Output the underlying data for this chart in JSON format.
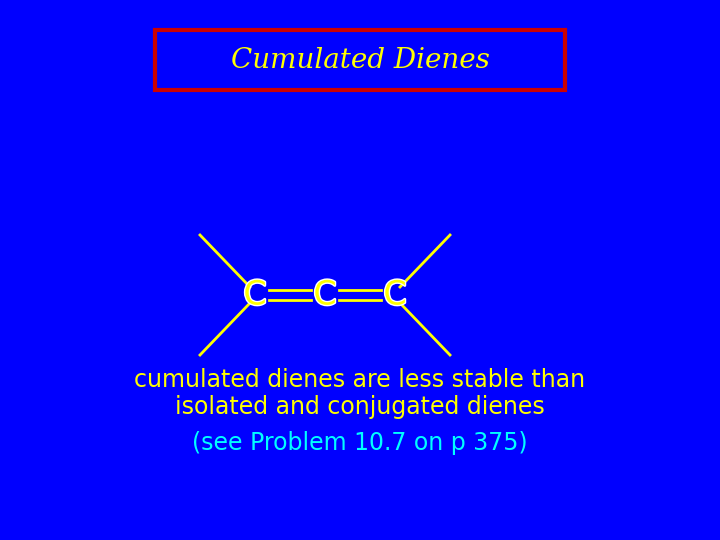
{
  "background_color": "#0000FF",
  "title_text": "Cumulated Dienes",
  "title_color": "#FFFF00",
  "title_box_color": "#CC0000",
  "title_fontsize": 20,
  "molecule_C_color": "#FFFF00",
  "molecule_bond_color": "#FFFF00",
  "molecule_fontsize": 24,
  "text1_line1": "cumulated dienes are less stable than",
  "text1_line2": "isolated and conjugated dienes",
  "text1_color": "#FFFF00",
  "text1_fontsize": 17,
  "text2": "(see Problem 10.7 on p 375)",
  "text2_color": "#00FFFF",
  "text2_fontsize": 17
}
